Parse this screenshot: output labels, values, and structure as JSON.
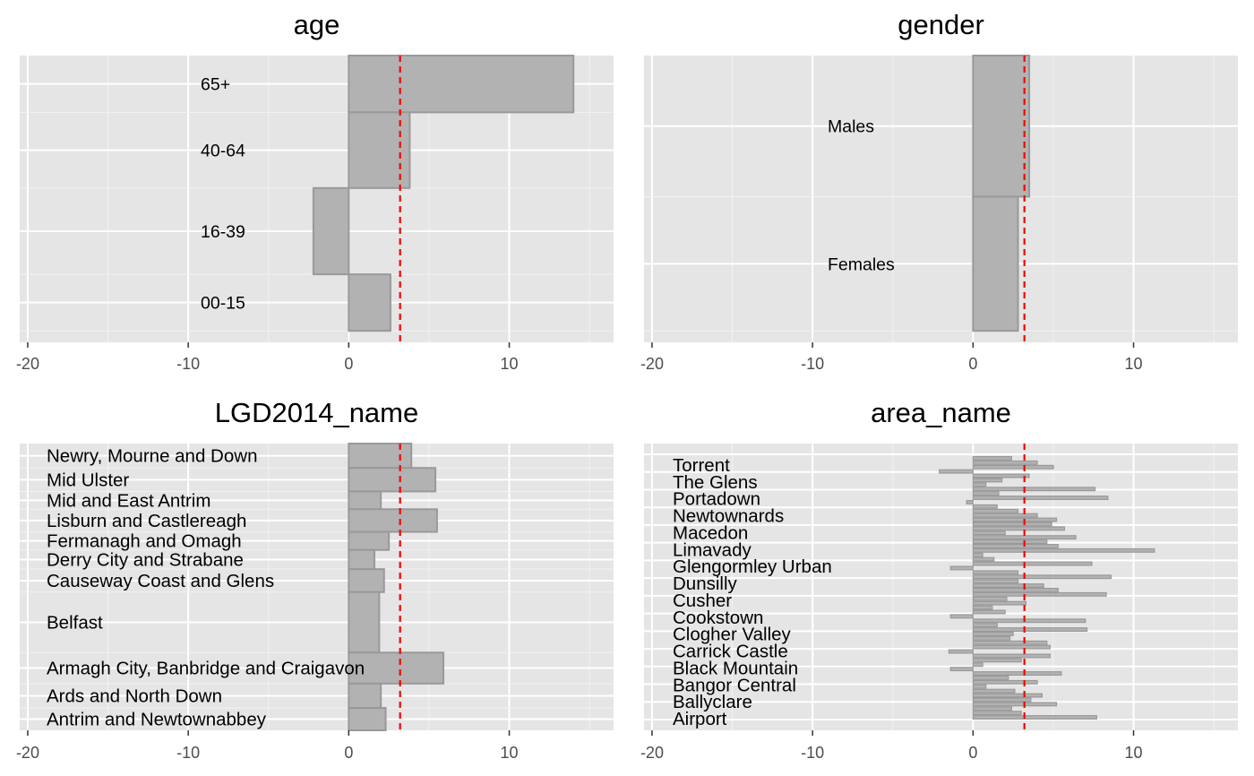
{
  "chart_data": [
    {
      "type": "bar",
      "orientation": "horizontal",
      "title": "age",
      "xlim": [
        -20.5,
        16.5
      ],
      "x_ticks": [
        -20,
        -10,
        0,
        10
      ],
      "grid": true,
      "reference_line": {
        "value": 3.2,
        "color": "#ff0000",
        "style": "dashed"
      },
      "bars": [
        {
          "label": "65+",
          "y0": 80.2,
          "y1": 100,
          "value": 14.0
        },
        {
          "label": "40-64",
          "y0": 53.8,
          "y1": 80.2,
          "value": 3.8
        },
        {
          "label": "16-39",
          "y0": 23.7,
          "y1": 53.8,
          "value": -2.2
        },
        {
          "label": "00-15",
          "y0": 4.0,
          "y1": 23.7,
          "value": 2.6
        }
      ]
    },
    {
      "type": "bar",
      "orientation": "horizontal",
      "title": "gender",
      "xlim": [
        -20.5,
        16.5
      ],
      "x_ticks": [
        -20,
        -10,
        0,
        10
      ],
      "grid": true,
      "reference_line": {
        "value": 3.2,
        "color": "#ff0000",
        "style": "dashed"
      },
      "bars": [
        {
          "label": "Males",
          "y0": 50.8,
          "y1": 100,
          "value": 3.5
        },
        {
          "label": "Females",
          "y0": 4.0,
          "y1": 50.8,
          "value": 2.8
        }
      ]
    },
    {
      "type": "bar",
      "orientation": "horizontal",
      "title": "LGD2014_name",
      "xlim": [
        -20.5,
        16.5
      ],
      "x_ticks": [
        -20,
        -10,
        0,
        10
      ],
      "grid": true,
      "reference_line": {
        "value": 3.2,
        "color": "#ff0000",
        "style": "dashed"
      },
      "bars": [
        {
          "label": "Newry, Mourne and Down",
          "y0": 91.5,
          "y1": 100,
          "value": 3.9
        },
        {
          "label": "Mid Ulster",
          "y0": 83.3,
          "y1": 91.5,
          "value": 5.4
        },
        {
          "label": "Mid and East Antrim",
          "y0": 77.1,
          "y1": 83.3,
          "value": 2.0
        },
        {
          "label": "Lisburn and Castlereagh",
          "y0": 69.2,
          "y1": 77.1,
          "value": 5.5
        },
        {
          "label": "Fermanagh and Omagh",
          "y0": 62.9,
          "y1": 69.2,
          "value": 2.5
        },
        {
          "label": "Derry City and Strabane",
          "y0": 56.2,
          "y1": 62.9,
          "value": 1.6
        },
        {
          "label": "Causeway Coast and Glens",
          "y0": 48.2,
          "y1": 56.2,
          "value": 2.2
        },
        {
          "label": "Belfast",
          "y0": 27.1,
          "y1": 48.2,
          "value": 1.9
        },
        {
          "label": "Armagh City, Banbridge and Craigavon",
          "y0": 16.3,
          "y1": 27.1,
          "value": 5.9
        },
        {
          "label": "Ards and North Down",
          "y0": 7.8,
          "y1": 16.3,
          "value": 2.0
        },
        {
          "label": "Antrim and Newtownabbey",
          "y0": 0,
          "y1": 7.8,
          "value": 2.3
        }
      ]
    },
    {
      "type": "bar",
      "orientation": "horizontal",
      "title": "area_name",
      "xlim": [
        -20.5,
        16.5
      ],
      "x_ticks": [
        -20,
        -10,
        0,
        10
      ],
      "grid": true,
      "reference_line": {
        "value": 3.2,
        "color": "#ff0000",
        "style": "dashed"
      },
      "category_labels": [
        "Torrent",
        "The Glens",
        "Portadown",
        "Newtownards",
        "Macedon",
        "Limavady",
        "Glengormley Urban",
        "Dunsilly",
        "Cusher",
        "Cookstown",
        "Clogher Valley",
        "Carrick Castle",
        "Black Mountain",
        "Bangor Central",
        "Ballyclare",
        "Airport"
      ],
      "values_top_to_bottom": [
        2.4,
        4.0,
        5.0,
        -2.1,
        3.5,
        1.8,
        0.8,
        7.6,
        1.6,
        8.4,
        -0.4,
        1.5,
        2.8,
        4.0,
        5.2,
        4.9,
        5.7,
        2.0,
        6.4,
        4.6,
        5.3,
        11.3,
        0.6,
        1.3,
        7.4,
        -1.4,
        2.8,
        8.6,
        2.8,
        4.4,
        5.3,
        8.3,
        2.1,
        3.3,
        1.2,
        2.0,
        -1.4,
        7.0,
        1.5,
        7.1,
        2.5,
        2.3,
        4.6,
        4.8,
        -1.5,
        4.8,
        3.0,
        0.6,
        -1.4,
        5.5,
        2.2,
        4.0,
        0.8,
        2.6,
        4.3,
        3.6,
        5.2,
        2.4,
        3.0,
        7.7
      ]
    }
  ]
}
